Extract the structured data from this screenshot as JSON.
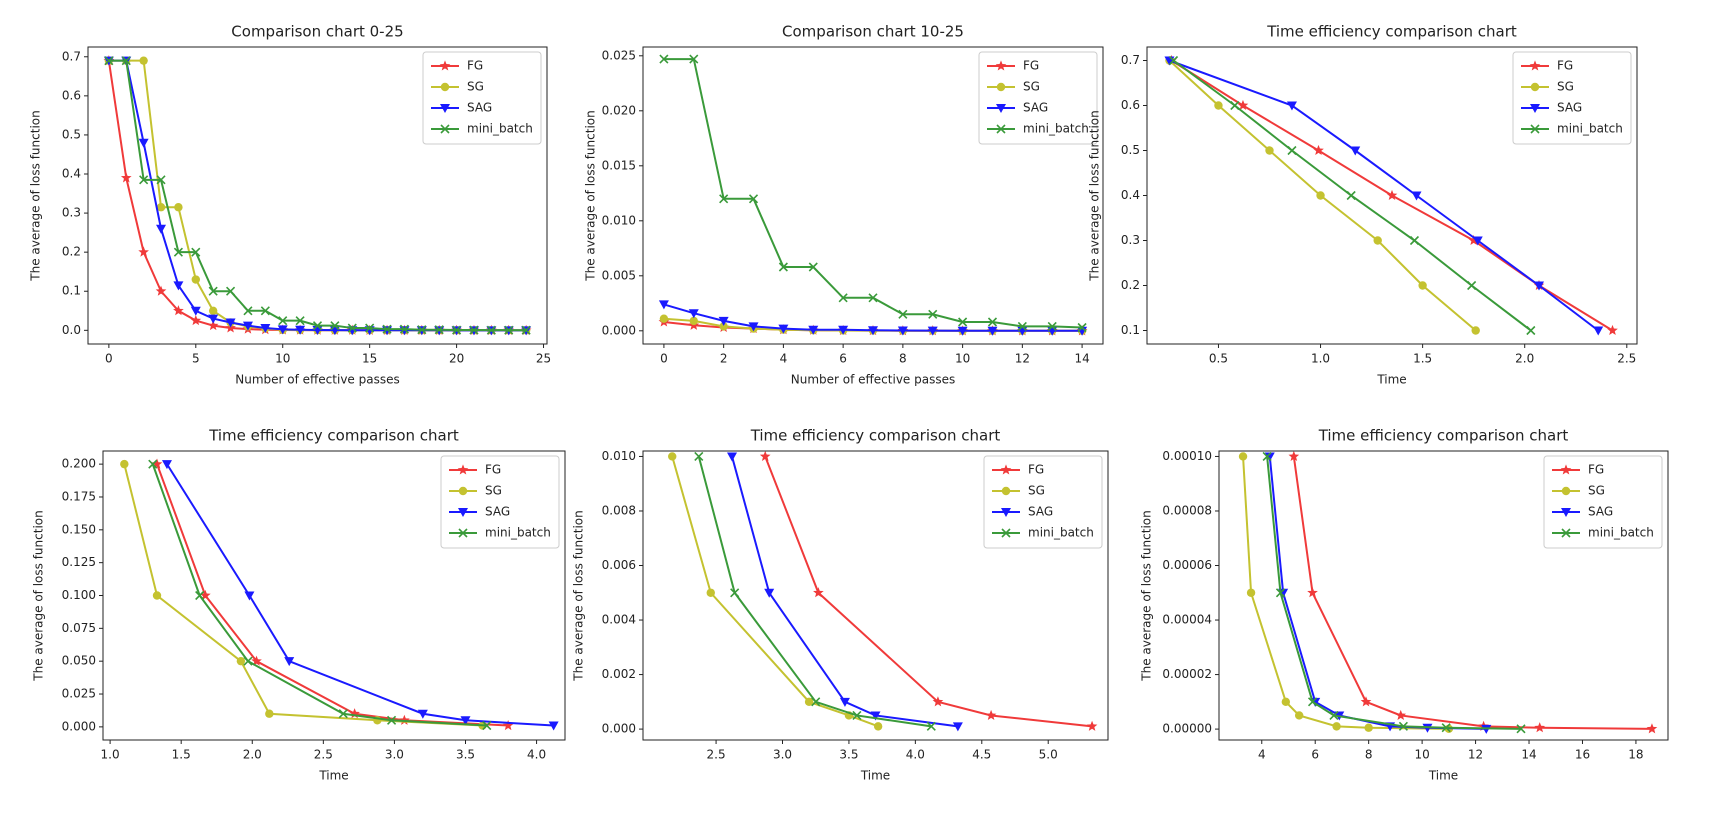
{
  "chart_data": [
    {
      "type": "line",
      "title": "Comparison chart 0-25",
      "xlabel": "Number of effective passes",
      "ylabel": "The average of loss function",
      "x": [
        0,
        1,
        2,
        3,
        4,
        5,
        6,
        7,
        8,
        9,
        10,
        11,
        12,
        13,
        14,
        15,
        16,
        17,
        18,
        19,
        20,
        21,
        22,
        23,
        24
      ],
      "xlim": [
        -1.2,
        25.2
      ],
      "xticks": [
        0,
        5,
        10,
        15,
        20,
        25
      ],
      "ylim": [
        -0.035,
        0.725
      ],
      "yticks": [
        {
          "value": 0,
          "label": "0.0"
        },
        0.1,
        0.2,
        0.3,
        0.4,
        0.5,
        0.6,
        0.7
      ],
      "legend": "upper right",
      "series": [
        {
          "name": "FG",
          "color": "#f03a3a",
          "marker": "star",
          "values": [
            0.69,
            0.39,
            0.2,
            0.1,
            0.05,
            0.025,
            0.012,
            0.006,
            0.003,
            0.0015,
            0.0008,
            0.0005,
            0.0003,
            0.0002,
            0.0001,
            5e-05,
            3e-05,
            2e-05,
            1e-05,
            1e-05,
            0,
            0,
            0,
            0,
            0
          ]
        },
        {
          "name": "SG",
          "color": "#c4c230",
          "marker": "circle",
          "values": [
            0.69,
            0.69,
            0.69,
            0.315,
            0.315,
            0.13,
            0.05,
            0.02,
            0.01,
            0.005,
            0.0011,
            0.0009,
            0.0004,
            0.0002,
            0.0001,
            5e-05,
            3e-05,
            2e-05,
            1e-05,
            1e-05,
            0,
            0,
            0,
            0,
            0
          ]
        },
        {
          "name": "SAG",
          "color": "#1a1aff",
          "marker": "tri-down",
          "values": [
            0.69,
            0.69,
            0.48,
            0.26,
            0.115,
            0.05,
            0.03,
            0.02,
            0.012,
            0.006,
            0.0024,
            0.0016,
            0.0009,
            0.0004,
            0.0002,
            0.0001,
            0.0001,
            5e-05,
            3e-05,
            2e-05,
            1e-05,
            1e-05,
            0,
            0,
            0
          ]
        },
        {
          "name": "mini_batch",
          "color": "#3a9a3a",
          "marker": "x",
          "values": [
            0.69,
            0.69,
            0.385,
            0.385,
            0.2,
            0.2,
            0.1,
            0.1,
            0.05,
            0.05,
            0.0247,
            0.0247,
            0.012,
            0.012,
            0.0058,
            0.0058,
            0.003,
            0.003,
            0.0015,
            0.0015,
            0.0008,
            0.0008,
            0.0004,
            0.0004,
            0.0003
          ]
        }
      ]
    },
    {
      "type": "line",
      "title": "Comparison chart 10-25",
      "xlabel": "Number of effective passes",
      "ylabel": "The average of loss function",
      "x": [
        0,
        1,
        2,
        3,
        4,
        5,
        6,
        7,
        8,
        9,
        10,
        11,
        12,
        13,
        14
      ],
      "xlim": [
        -0.7,
        14.7
      ],
      "xticks": [
        0,
        2,
        4,
        6,
        8,
        10,
        12,
        14
      ],
      "ylim": [
        -0.0012,
        0.0258
      ],
      "yticks": [
        {
          "value": 0,
          "label": "0.000"
        },
        0.005,
        {
          "value": 0.01,
          "label": "0.010"
        },
        0.015,
        {
          "value": 0.02,
          "label": "0.020"
        },
        0.025
      ],
      "legend": "upper right",
      "series": [
        {
          "name": "FG",
          "color": "#f03a3a",
          "marker": "star",
          "values": [
            0.0008,
            0.0005,
            0.0003,
            0.0002,
            0.0001,
            5e-05,
            3e-05,
            2e-05,
            1e-05,
            1e-05,
            0,
            0,
            0,
            0,
            0
          ]
        },
        {
          "name": "SG",
          "color": "#c4c230",
          "marker": "circle",
          "values": [
            0.0011,
            0.0009,
            0.0004,
            0.0002,
            0.0001,
            5e-05,
            3e-05,
            2e-05,
            1e-05,
            1e-05,
            0,
            0,
            0,
            0,
            0
          ]
        },
        {
          "name": "SAG",
          "color": "#1a1aff",
          "marker": "tri-down",
          "values": [
            0.0024,
            0.0016,
            0.0009,
            0.0004,
            0.0002,
            0.0001,
            0.0001,
            5e-05,
            3e-05,
            2e-05,
            1e-05,
            1e-05,
            0,
            0,
            0
          ]
        },
        {
          "name": "mini_batch",
          "color": "#3a9a3a",
          "marker": "x",
          "values": [
            0.0247,
            0.0247,
            0.012,
            0.012,
            0.0058,
            0.0058,
            0.003,
            0.003,
            0.0015,
            0.0015,
            0.0008,
            0.0008,
            0.0004,
            0.0004,
            0.0003
          ]
        }
      ]
    },
    {
      "type": "line",
      "title": "Time efficiency comparison chart",
      "xlabel": "Time",
      "ylabel": "The average of loss function",
      "xlim": [
        0.15,
        2.55
      ],
      "xticks": [
        0.5,
        {
          "value": 1,
          "label": "1.0"
        },
        1.5,
        {
          "value": 2,
          "label": "2.0"
        },
        2.5
      ],
      "ylim": [
        0.07,
        0.73
      ],
      "yticks": [
        0.1,
        0.2,
        0.3,
        0.4,
        0.5,
        0.6,
        0.7
      ],
      "legend": "upper right",
      "series": [
        {
          "name": "FG",
          "color": "#f03a3a",
          "marker": "star",
          "x": [
            0.27,
            0.62,
            0.99,
            1.35,
            1.75,
            2.07,
            2.43
          ],
          "values": [
            0.7,
            0.6,
            0.5,
            0.4,
            0.3,
            0.2,
            0.1
          ]
        },
        {
          "name": "SG",
          "color": "#c4c230",
          "marker": "circle",
          "x": [
            0.26,
            0.5,
            0.75,
            1.0,
            1.28,
            1.5,
            1.76
          ],
          "values": [
            0.7,
            0.6,
            0.5,
            0.4,
            0.3,
            0.2,
            0.1
          ]
        },
        {
          "name": "SAG",
          "color": "#1a1aff",
          "marker": "tri-down",
          "x": [
            0.26,
            0.86,
            1.17,
            1.47,
            1.77,
            2.07,
            2.36
          ],
          "values": [
            0.7,
            0.6,
            0.5,
            0.4,
            0.3,
            0.2,
            0.1
          ]
        },
        {
          "name": "mini_batch",
          "color": "#3a9a3a",
          "marker": "x",
          "x": [
            0.28,
            0.58,
            0.86,
            1.15,
            1.46,
            1.74,
            2.03
          ],
          "values": [
            0.7,
            0.6,
            0.5,
            0.4,
            0.3,
            0.2,
            0.1
          ]
        }
      ]
    },
    {
      "type": "line",
      "title": "Time efficiency comparison chart",
      "xlabel": "Time",
      "ylabel": "The average of loss function",
      "xlim": [
        0.95,
        4.2
      ],
      "xticks": [
        {
          "value": 1,
          "label": "1.0"
        },
        1.5,
        {
          "value": 2,
          "label": "2.0"
        },
        2.5,
        {
          "value": 3,
          "label": "3.0"
        },
        3.5,
        {
          "value": 4,
          "label": "4.0"
        }
      ],
      "ylim": [
        -0.01,
        0.21
      ],
      "yticks": [
        {
          "value": 0,
          "label": "0.000"
        },
        0.025,
        {
          "value": 0.05,
          "label": "0.050"
        },
        0.075,
        {
          "value": 0.1,
          "label": "0.100"
        },
        0.125,
        {
          "value": 0.15,
          "label": "0.150"
        },
        0.175,
        {
          "value": 0.2,
          "label": "0.200"
        }
      ],
      "legend": "upper right",
      "series": [
        {
          "name": "FG",
          "color": "#f03a3a",
          "marker": "star",
          "x": [
            1.33,
            1.67,
            2.03,
            2.72,
            3.07,
            3.8
          ],
          "values": [
            0.2,
            0.1,
            0.05,
            0.01,
            0.005,
            0.001
          ]
        },
        {
          "name": "SG",
          "color": "#c4c230",
          "marker": "circle",
          "x": [
            1.1,
            1.33,
            1.92,
            2.12,
            2.88,
            3.62
          ],
          "values": [
            0.2,
            0.1,
            0.05,
            0.01,
            0.005,
            0.001
          ]
        },
        {
          "name": "SAG",
          "color": "#1a1aff",
          "marker": "tri-down",
          "x": [
            1.4,
            1.98,
            2.26,
            3.2,
            3.5,
            4.12
          ],
          "values": [
            0.2,
            0.1,
            0.05,
            0.01,
            0.005,
            0.001
          ]
        },
        {
          "name": "mini_batch",
          "color": "#3a9a3a",
          "marker": "x",
          "x": [
            1.3,
            1.63,
            1.97,
            2.64,
            2.98,
            3.65
          ],
          "values": [
            0.2,
            0.1,
            0.05,
            0.01,
            0.005,
            0.001
          ]
        }
      ]
    },
    {
      "type": "line",
      "title": "Time efficiency comparison chart",
      "xlabel": "Time",
      "ylabel": "The average of loss function",
      "xlim": [
        1.95,
        5.45
      ],
      "xticks": [
        2.5,
        {
          "value": 3,
          "label": "3.0"
        },
        3.5,
        {
          "value": 4,
          "label": "4.0"
        },
        4.5,
        {
          "value": 5,
          "label": "5.0"
        }
      ],
      "ylim": [
        -0.0004,
        0.0102
      ],
      "yticks": [
        {
          "value": 0,
          "label": "0.000"
        },
        0.002,
        0.004,
        0.006,
        0.008,
        {
          "value": 0.01,
          "label": "0.010"
        }
      ],
      "legend": "upper right",
      "series": [
        {
          "name": "FG",
          "color": "#f03a3a",
          "marker": "star",
          "x": [
            2.87,
            3.27,
            4.17,
            4.57,
            5.33
          ],
          "values": [
            0.01,
            0.005,
            0.001,
            0.0005,
            0.0001
          ]
        },
        {
          "name": "SG",
          "color": "#c4c230",
          "marker": "circle",
          "x": [
            2.17,
            2.46,
            3.2,
            3.5,
            3.72
          ],
          "values": [
            0.01,
            0.005,
            0.001,
            0.0005,
            0.0001
          ]
        },
        {
          "name": "SAG",
          "color": "#1a1aff",
          "marker": "tri-down",
          "x": [
            2.62,
            2.9,
            3.47,
            3.7,
            4.32
          ],
          "values": [
            0.01,
            0.005,
            0.001,
            0.0005,
            0.0001
          ]
        },
        {
          "name": "mini_batch",
          "color": "#3a9a3a",
          "marker": "x",
          "x": [
            2.37,
            2.64,
            3.25,
            3.56,
            4.12
          ],
          "values": [
            0.01,
            0.005,
            0.001,
            0.0005,
            0.0001
          ]
        }
      ]
    },
    {
      "type": "line",
      "title": "Time efficiency comparison chart",
      "xlabel": "Time",
      "ylabel": "The average of loss function",
      "xlim": [
        2.4,
        19.2
      ],
      "xticks": [
        4,
        6,
        8,
        10,
        12,
        14,
        16,
        18
      ],
      "ylim": [
        -4e-06,
        0.000102
      ],
      "yticks": [
        {
          "value": 0,
          "label": "0.00000"
        },
        {
          "value": 2e-05,
          "label": "0.00002"
        },
        {
          "value": 4e-05,
          "label": "0.00004"
        },
        {
          "value": 6e-05,
          "label": "0.00006"
        },
        {
          "value": 8e-05,
          "label": "0.00008"
        },
        {
          "value": 0.0001,
          "label": "0.00010"
        }
      ],
      "legend": "upper right",
      "series": [
        {
          "name": "FG",
          "color": "#f03a3a",
          "marker": "star",
          "x": [
            5.2,
            5.9,
            7.9,
            9.2,
            12.3,
            14.4,
            18.6
          ],
          "values": [
            0.0001,
            5e-05,
            1e-05,
            5e-06,
            1e-06,
            5e-07,
            1e-07
          ]
        },
        {
          "name": "SG",
          "color": "#c4c230",
          "marker": "circle",
          "x": [
            3.3,
            3.6,
            4.9,
            5.4,
            6.8,
            8.0,
            11.0
          ],
          "values": [
            0.0001,
            5e-05,
            1e-05,
            5e-06,
            1e-06,
            5e-07,
            1e-07
          ]
        },
        {
          "name": "SAG",
          "color": "#1a1aff",
          "marker": "tri-down",
          "x": [
            4.3,
            4.8,
            6.0,
            6.9,
            8.8,
            10.2,
            12.4
          ],
          "values": [
            0.0001,
            5e-05,
            1e-05,
            5e-06,
            1e-06,
            5e-07,
            1e-07
          ]
        },
        {
          "name": "mini_batch",
          "color": "#3a9a3a",
          "marker": "x",
          "x": [
            4.2,
            4.7,
            5.9,
            6.7,
            9.3,
            10.9,
            13.7
          ],
          "values": [
            0.0001,
            5e-05,
            1e-05,
            5e-06,
            1e-06,
            5e-07,
            1e-07
          ]
        }
      ]
    }
  ]
}
